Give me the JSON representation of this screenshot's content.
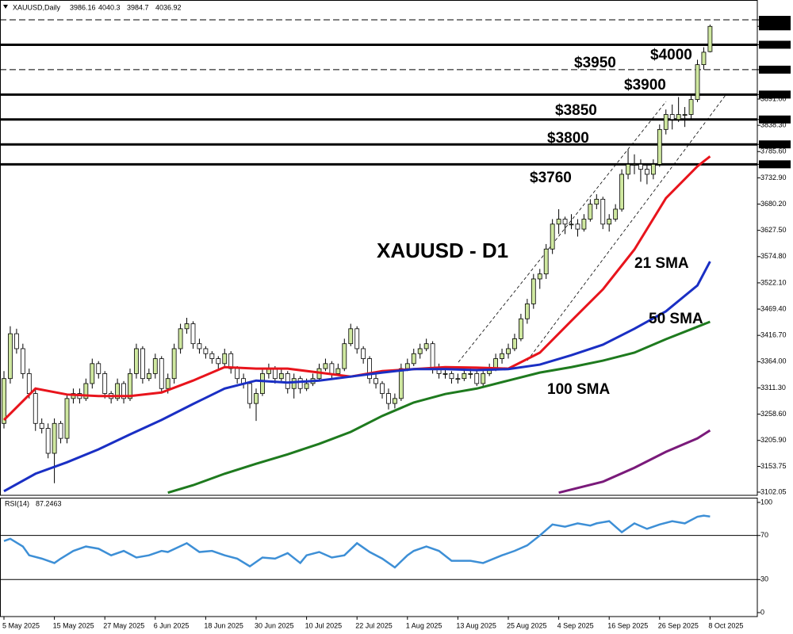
{
  "chart_data": [
    {
      "type": "candlestick",
      "title": "XAUUSD,Daily",
      "annotation": "XAUUSD - D1",
      "bull_color": "#cfe8a0",
      "bear_color": "#ffffff",
      "grid": false,
      "ylim": [
        3095.7,
        4089.8
      ],
      "yticks": [
        {
          "value": 4050,
          "label": "4050.00"
        },
        4036.92,
        {
          "value": 4000,
          "label": "4000.00"
        },
        {
          "value": 3950,
          "label": "3950.00"
        },
        {
          "value": 3900,
          "label": "3900.00"
        },
        {
          "value": 3891,
          "label": "3891.00"
        },
        {
          "value": 3850,
          "label": "3850.00"
        },
        {
          "value": 3838.3,
          "label": "3838.30"
        },
        {
          "value": 3800,
          "label": "3800.00"
        },
        {
          "value": 3785.6,
          "label": "3785.60"
        },
        {
          "value": 3760,
          "label": "3760.00"
        },
        {
          "value": 3732.9,
          "label": "3732.90"
        },
        {
          "value": 3680.2,
          "label": "3680.20"
        },
        {
          "value": 3627.5,
          "label": "3627.50"
        },
        {
          "value": 3574.8,
          "label": "3574.80"
        },
        {
          "value": 3522.1,
          "label": "3522.10"
        },
        {
          "value": 3469.4,
          "label": "3469.40"
        },
        {
          "value": 3416.7,
          "label": "3416.70"
        },
        {
          "value": 3364,
          "label": "3364.00"
        },
        {
          "value": 3311.3,
          "label": "3311.30"
        },
        {
          "value": 3258.6,
          "label": "3258.60"
        },
        {
          "value": 3205.9,
          "label": "3205.90"
        },
        {
          "value": 3153.75,
          "label": "3153.75"
        },
        {
          "value": 3102.05,
          "label": "3102.05"
        }
      ],
      "levels": [
        {
          "value": 4050,
          "style": "dashed"
        },
        {
          "value": 4000,
          "style": "solid",
          "label": "$4000"
        },
        {
          "value": 3950,
          "style": "dashed",
          "label": "$3950"
        },
        {
          "value": 3900,
          "style": "solid",
          "label": "$3900"
        },
        {
          "value": 3850,
          "style": "solid",
          "label": "$3850"
        },
        {
          "value": 3800,
          "style": "solid",
          "label": "$3800"
        },
        {
          "value": 3760,
          "style": "solid",
          "label": "$3760"
        }
      ],
      "categories": [
        "5 May 2025",
        null,
        null,
        null,
        null,
        null,
        null,
        null,
        "15 May 2025",
        null,
        null,
        null,
        null,
        null,
        null,
        null,
        "27 May 2025",
        null,
        null,
        null,
        null,
        null,
        null,
        null,
        "6 Jun 2025",
        null,
        null,
        null,
        null,
        null,
        null,
        null,
        "18 Jun 2025",
        null,
        null,
        null,
        null,
        null,
        null,
        null,
        "30 Jun 2025",
        null,
        null,
        null,
        null,
        null,
        null,
        null,
        "10 Jul 2025",
        null,
        null,
        null,
        null,
        null,
        null,
        null,
        "22 Jul 2025",
        null,
        null,
        null,
        null,
        null,
        null,
        null,
        "1 Aug 2025",
        null,
        null,
        null,
        null,
        null,
        null,
        null,
        "13 Aug 2025",
        null,
        null,
        null,
        null,
        null,
        null,
        null,
        "25 Aug 2025",
        null,
        null,
        null,
        null,
        null,
        null,
        null,
        "4 Sep 2025",
        null,
        null,
        null,
        null,
        null,
        null,
        null,
        "16 Sep 2025",
        null,
        null,
        null,
        null,
        null,
        null,
        null,
        "26 Sep 2025",
        null,
        null,
        null,
        null,
        null,
        null,
        null,
        "8 Oct 2025"
      ],
      "candles": [
        [
          3240,
          3345,
          3230,
          3330
        ],
        [
          3330,
          3435,
          3320,
          3420
        ],
        [
          3420,
          3430,
          3380,
          3390
        ],
        [
          3390,
          3400,
          3330,
          3340
        ],
        [
          3340,
          3350,
          3290,
          3300
        ],
        [
          3300,
          3310,
          3225,
          3240
        ],
        [
          3240,
          3250,
          3220,
          3230
        ],
        [
          3230,
          3240,
          3170,
          3180
        ],
        [
          3180,
          3250,
          3120,
          3240
        ],
        [
          3240,
          3245,
          3200,
          3210
        ],
        [
          3210,
          3300,
          3200,
          3290
        ],
        [
          3290,
          3310,
          3280,
          3300
        ],
        [
          3300,
          3310,
          3280,
          3290
        ],
        [
          3290,
          3330,
          3285,
          3320
        ],
        [
          3320,
          3370,
          3310,
          3360
        ],
        [
          3360,
          3365,
          3330,
          3340
        ],
        [
          3340,
          3345,
          3290,
          3300
        ],
        [
          3300,
          3305,
          3280,
          3290
        ],
        [
          3290,
          3330,
          3285,
          3320
        ],
        [
          3320,
          3325,
          3280,
          3290
        ],
        [
          3290,
          3350,
          3285,
          3340
        ],
        [
          3340,
          3400,
          3330,
          3390
        ],
        [
          3390,
          3395,
          3320,
          3330
        ],
        [
          3330,
          3350,
          3325,
          3340
        ],
        [
          3340,
          3380,
          3330,
          3370
        ],
        [
          3370,
          3375,
          3300,
          3310
        ],
        [
          3310,
          3340,
          3300,
          3330
        ],
        [
          3330,
          3400,
          3320,
          3390
        ],
        [
          3390,
          3440,
          3380,
          3430
        ],
        [
          3430,
          3452,
          3420,
          3440
        ],
        [
          3440,
          3445,
          3390,
          3400
        ],
        [
          3400,
          3410,
          3380,
          3390
        ],
        [
          3390,
          3395,
          3370,
          3380
        ],
        [
          3380,
          3385,
          3360,
          3370
        ],
        [
          3370,
          3375,
          3350,
          3360
        ],
        [
          3360,
          3390,
          3355,
          3380
        ],
        [
          3380,
          3385,
          3340,
          3350
        ],
        [
          3350,
          3355,
          3320,
          3330
        ],
        [
          3330,
          3340,
          3310,
          3320
        ],
        [
          3320,
          3325,
          3270,
          3280
        ],
        [
          3280,
          3310,
          3245,
          3300
        ],
        [
          3300,
          3350,
          3295,
          3340
        ],
        [
          3340,
          3360,
          3330,
          3350
        ],
        [
          3350,
          3355,
          3320,
          3330
        ],
        [
          3330,
          3350,
          3325,
          3340
        ],
        [
          3340,
          3345,
          3300,
          3310
        ],
        [
          3310,
          3340,
          3290,
          3330
        ],
        [
          3330,
          3335,
          3300,
          3310
        ],
        [
          3310,
          3330,
          3305,
          3320
        ],
        [
          3320,
          3340,
          3315,
          3330
        ],
        [
          3330,
          3360,
          3325,
          3350
        ],
        [
          3350,
          3370,
          3345,
          3360
        ],
        [
          3360,
          3365,
          3330,
          3340
        ],
        [
          3340,
          3360,
          3335,
          3350
        ],
        [
          3350,
          3410,
          3345,
          3400
        ],
        [
          3400,
          3440,
          3395,
          3430
        ],
        [
          3430,
          3435,
          3380,
          3390
        ],
        [
          3390,
          3395,
          3360,
          3370
        ],
        [
          3370,
          3375,
          3320,
          3330
        ],
        [
          3330,
          3340,
          3310,
          3320
        ],
        [
          3320,
          3325,
          3290,
          3300
        ],
        [
          3300,
          3310,
          3268,
          3280
        ],
        [
          3280,
          3300,
          3270,
          3290
        ],
        [
          3290,
          3360,
          3285,
          3350
        ],
        [
          3350,
          3370,
          3345,
          3360
        ],
        [
          3360,
          3390,
          3355,
          3380
        ],
        [
          3380,
          3400,
          3370,
          3390
        ],
        [
          3390,
          3410,
          3385,
          3400
        ],
        [
          3400,
          3405,
          3340,
          3350
        ],
        [
          3350,
          3360,
          3330,
          3340
        ],
        [
          3340,
          3350,
          3330,
          3340
        ],
        [
          3340,
          3345,
          3320,
          3330
        ],
        [
          3330,
          3340,
          3320,
          3330
        ],
        [
          3330,
          3350,
          3325,
          3340
        ],
        [
          3340,
          3350,
          3330,
          3340
        ],
        [
          3340,
          3345,
          3315,
          3320
        ],
        [
          3320,
          3345,
          3315,
          3340
        ],
        [
          3340,
          3360,
          3335,
          3350
        ],
        [
          3350,
          3380,
          3345,
          3370
        ],
        [
          3370,
          3390,
          3360,
          3380
        ],
        [
          3380,
          3400,
          3370,
          3390
        ],
        [
          3390,
          3420,
          3385,
          3410
        ],
        [
          3410,
          3460,
          3405,
          3450
        ],
        [
          3450,
          3490,
          3440,
          3480
        ],
        [
          3480,
          3540,
          3470,
          3530
        ],
        [
          3530,
          3550,
          3510,
          3540
        ],
        [
          3540,
          3600,
          3530,
          3590
        ],
        [
          3590,
          3650,
          3580,
          3640
        ],
        [
          3640,
          3670,
          3620,
          3650
        ],
        [
          3650,
          3655,
          3620,
          3640
        ],
        [
          3640,
          3660,
          3630,
          3640
        ],
        [
          3640,
          3650,
          3615,
          3630
        ],
        [
          3630,
          3660,
          3625,
          3650
        ],
        [
          3650,
          3690,
          3645,
          3680
        ],
        [
          3680,
          3700,
          3670,
          3690
        ],
        [
          3690,
          3695,
          3630,
          3640
        ],
        [
          3640,
          3660,
          3625,
          3650
        ],
        [
          3650,
          3680,
          3645,
          3670
        ],
        [
          3670,
          3750,
          3665,
          3740
        ],
        [
          3740,
          3790,
          3730,
          3760
        ],
        [
          3760,
          3780,
          3740,
          3760
        ],
        [
          3760,
          3770,
          3725,
          3750
        ],
        [
          3750,
          3760,
          3720,
          3740
        ],
        [
          3740,
          3770,
          3730,
          3760
        ],
        [
          3760,
          3840,
          3755,
          3830
        ],
        [
          3830,
          3870,
          3820,
          3860
        ],
        [
          3860,
          3880,
          3830,
          3850
        ],
        [
          3850,
          3895,
          3845,
          3860
        ],
        [
          3860,
          3875,
          3835,
          3860
        ],
        [
          3860,
          3900,
          3850,
          3890
        ],
        [
          3890,
          3970,
          3885,
          3960
        ],
        [
          3960,
          3995,
          3950,
          3985
        ],
        [
          3986.16,
          4040.3,
          3984.7,
          4036.92
        ]
      ],
      "series": [
        {
          "name": "21 SMA",
          "color": "#e8141c",
          "x": [
            0,
            5,
            10,
            15,
            20,
            25,
            30,
            35,
            40,
            45,
            50,
            55,
            60,
            65,
            70,
            75,
            80,
            85,
            90,
            95,
            100,
            105,
            110,
            112
          ],
          "values": [
            3247,
            3310,
            3298,
            3295,
            3295,
            3302,
            3326,
            3353,
            3350,
            3350,
            3342,
            3334,
            3345,
            3349,
            3353,
            3352,
            3350,
            3382,
            3446,
            3509,
            3589,
            3692,
            3756,
            3776
          ]
        },
        {
          "name": "50 SMA",
          "color": "#1a2fc4",
          "x": [
            0,
            5,
            10,
            15,
            20,
            25,
            30,
            35,
            40,
            45,
            50,
            55,
            60,
            65,
            70,
            75,
            80,
            85,
            90,
            95,
            100,
            105,
            110,
            112
          ],
          "values": [
            3104,
            3139,
            3162,
            3188,
            3218,
            3247,
            3279,
            3310,
            3326,
            3322,
            3326,
            3334,
            3342,
            3349,
            3349,
            3347,
            3349,
            3358,
            3377,
            3398,
            3430,
            3465,
            3517,
            3565
          ]
        },
        {
          "name": "100 SMA",
          "color": "#1e7a1e",
          "x": [
            26,
            30,
            35,
            40,
            45,
            50,
            55,
            60,
            65,
            70,
            75,
            80,
            85,
            90,
            95,
            100,
            105,
            110,
            112
          ],
          "values": [
            3101,
            3116,
            3139,
            3159,
            3178,
            3199,
            3223,
            3255,
            3282,
            3299,
            3310,
            3326,
            3342,
            3353,
            3366,
            3382,
            3409,
            3434,
            3444
          ]
        },
        {
          "color": "#7a1a7a",
          "x": [
            88,
            95,
            100,
            105,
            110,
            112
          ],
          "values": [
            3101,
            3123,
            3151,
            3183,
            3210,
            3226
          ]
        }
      ]
    },
    {
      "type": "line",
      "title": "RSI(14)",
      "ylim": [
        -3.6,
        104.3
      ],
      "yticks": [
        100,
        70,
        30,
        0
      ],
      "levels": [
        70,
        30
      ],
      "series": [
        {
          "color": "#3d8fd6",
          "x": [
            0,
            1,
            3,
            4,
            6,
            8,
            9,
            11,
            13,
            15,
            17,
            19,
            21,
            23,
            25,
            26,
            29,
            31,
            33,
            35,
            37,
            39,
            41,
            43,
            45,
            47,
            48,
            50,
            52,
            54,
            56,
            58,
            60,
            62,
            64,
            65,
            67,
            69,
            71,
            74,
            76,
            79,
            81,
            83,
            85,
            87,
            89,
            91,
            93,
            94,
            96,
            98,
            100,
            102,
            104,
            106,
            108,
            110,
            111,
            112
          ],
          "values": [
            65,
            67,
            60,
            52,
            49,
            45,
            49,
            56,
            60,
            58,
            52,
            56,
            50,
            52,
            56,
            55,
            63,
            55,
            56,
            52,
            49,
            42,
            50,
            49,
            54,
            45,
            52,
            55,
            50,
            52,
            63,
            55,
            49,
            41,
            52,
            56,
            60,
            56,
            47,
            47,
            45,
            52,
            56,
            61,
            70,
            80,
            78,
            81,
            79,
            81,
            83,
            73,
            81,
            76,
            80,
            83,
            81,
            87,
            88,
            87.2463
          ]
        }
      ]
    }
  ]
}
